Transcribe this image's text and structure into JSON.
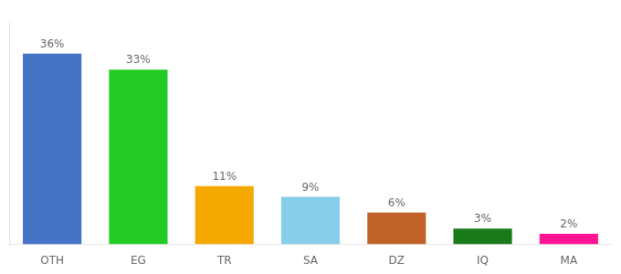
{
  "chart_data": {
    "type": "bar",
    "categories": [
      "OTH",
      "EG",
      "TR",
      "SA",
      "DZ",
      "IQ",
      "MA"
    ],
    "values": [
      36,
      33,
      11,
      9,
      6,
      3,
      2
    ],
    "value_labels": [
      "36%",
      "33%",
      "11%",
      "9%",
      "6%",
      "3%",
      "2%"
    ],
    "colors": [
      "#4472c4",
      "#22cc22",
      "#f5a800",
      "#87ceeb",
      "#c0622a",
      "#1a7a1a",
      "#ff1493"
    ],
    "ylim": [
      0,
      42
    ],
    "data_labels": true,
    "tick_labels": "x",
    "grid": false
  }
}
